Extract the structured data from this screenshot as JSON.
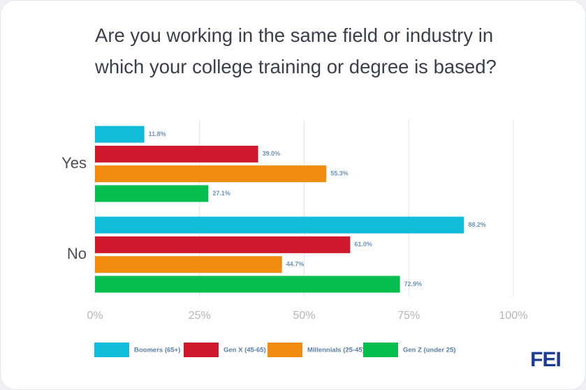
{
  "chart_data": {
    "type": "hbar",
    "title": "Are you working in the same field or industry in which your college training or degree is based?",
    "categories": [
      "Yes",
      "No"
    ],
    "series": [
      {
        "name": "Boomers (65+)",
        "color": "#11bcd9",
        "values": [
          11.8,
          88.2
        ],
        "value_labels": [
          "11.8%",
          "88.2%"
        ]
      },
      {
        "name": "Gen X (45-65)",
        "color": "#d0182c",
        "values": [
          39.0,
          61.0
        ],
        "value_labels": [
          "39.0%",
          "61.0%"
        ]
      },
      {
        "name": "Millennials (25-45)",
        "color": "#f28c10",
        "values": [
          55.3,
          44.7
        ],
        "value_labels": [
          "55.3%",
          "44.7%"
        ]
      },
      {
        "name": "Gen Z (under 25)",
        "color": "#06bd50",
        "values": [
          27.1,
          72.9
        ],
        "value_labels": [
          "27.1%",
          "72.9%"
        ]
      }
    ],
    "xlim": [
      0,
      100
    ],
    "xticks": [
      {
        "value": 0,
        "label": "0%"
      },
      {
        "value": 25,
        "label": "25%"
      },
      {
        "value": 50,
        "label": "50%"
      },
      {
        "value": 75,
        "label": "75%"
      },
      {
        "value": 100,
        "label": "100%"
      }
    ],
    "grid": true,
    "legend": "bottom",
    "logo": "FEI"
  }
}
